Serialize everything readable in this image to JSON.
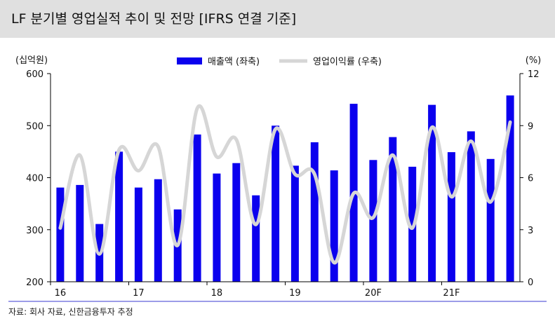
{
  "title": "LF 분기별 영업실적 추이 및 전망 [IFRS 연결 기준]",
  "source": "자료: 회사 자료, 신한금융투자 추정",
  "chart_data": {
    "type": "bar",
    "title": "LF 분기별 영업실적 추이 및 전망 [IFRS 연결 기준]",
    "left_unit": "(십억원)",
    "right_unit": "(%)",
    "ylim_left": [
      200,
      600
    ],
    "yticks_left": [
      "600",
      "500",
      "400",
      "300",
      "200"
    ],
    "ylim_right": [
      0,
      12
    ],
    "yticks_right": [
      "12",
      "9",
      "6",
      "3",
      "0"
    ],
    "x_labels": [
      "16",
      "17",
      "18",
      "19",
      "20F",
      "21F"
    ],
    "quarters_per_label": 4,
    "legend_position": "top-center",
    "grid": false,
    "series": [
      {
        "name": "매출액 (좌축)",
        "type": "bar",
        "axis": "left",
        "color": "#0b00ee",
        "values": [
          381,
          386,
          311,
          450,
          381,
          397,
          339,
          483,
          408,
          428,
          366,
          500,
          423,
          468,
          414,
          542,
          434,
          478,
          421,
          540,
          449,
          489,
          436,
          558
        ]
      },
      {
        "name": "영업이익률 (우축)",
        "type": "line",
        "axis": "right",
        "color": "#d6d6d6",
        "values": [
          3.1,
          7.3,
          1.6,
          7.6,
          6.4,
          7.8,
          2.1,
          10.0,
          7.2,
          8.2,
          3.3,
          8.8,
          6.2,
          6.2,
          1.1,
          5.1,
          3.7,
          7.3,
          3.1,
          8.9,
          4.9,
          8.1,
          4.6,
          9.2
        ]
      }
    ]
  }
}
